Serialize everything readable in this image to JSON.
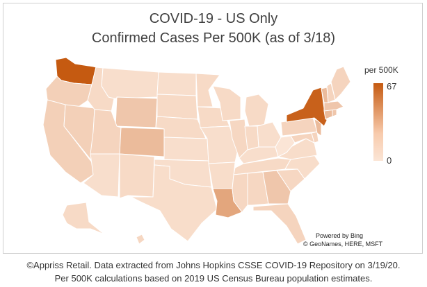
{
  "title_line1": "COVID-19 - US Only",
  "title_line2": "Confirmed Cases Per 500K (as of 3/18)",
  "legend": {
    "title": "per 500K",
    "max": "67",
    "min": "0"
  },
  "credits": {
    "powered_by": "Powered by Bing",
    "sources": "© GeoNames, HERE, MSFT"
  },
  "footnote": {
    "line1": "©Appriss Retail.  Data extracted from Johns Hopkins CSSE COVID-19 Repository on 3/19/20.",
    "line2": "Per 500K calculations based on 2019 US Census Bureau population estimates."
  },
  "colors": {
    "high": "#c55a11",
    "low": "#fbe5d6"
  },
  "regions": [
    {
      "abbr": "WA",
      "level": 1.0
    },
    {
      "abbr": "NY",
      "level": 0.95
    },
    {
      "abbr": "LA",
      "level": 0.45
    },
    {
      "abbr": "CO",
      "level": 0.3
    },
    {
      "abbr": "VT",
      "level": 0.3
    },
    {
      "abbr": "NJ",
      "level": 0.3
    },
    {
      "abbr": "WY",
      "level": 0.22
    },
    {
      "abbr": "GA",
      "level": 0.22
    },
    {
      "abbr": "MA",
      "level": 0.22
    },
    {
      "abbr": "RI",
      "level": 0.22
    },
    {
      "abbr": "OR",
      "level": 0.15
    },
    {
      "abbr": "CA",
      "level": 0.15
    },
    {
      "abbr": "NV",
      "level": 0.15
    },
    {
      "abbr": "UT",
      "level": 0.12
    },
    {
      "abbr": "ME",
      "level": 0.12
    },
    {
      "abbr": "FL",
      "level": 0.12
    },
    {
      "abbr": "ID",
      "level": 0.08
    },
    {
      "abbr": "MT",
      "level": 0.05
    },
    {
      "abbr": "ND",
      "level": 0.05
    },
    {
      "abbr": "SD",
      "level": 0.08
    },
    {
      "abbr": "NE",
      "level": 0.08
    },
    {
      "abbr": "KS",
      "level": 0.05
    },
    {
      "abbr": "OK",
      "level": 0.05
    },
    {
      "abbr": "TX",
      "level": 0.06
    },
    {
      "abbr": "AZ",
      "level": 0.05
    },
    {
      "abbr": "NM",
      "level": 0.08
    },
    {
      "abbr": "MN",
      "level": 0.08
    },
    {
      "abbr": "IA",
      "level": 0.08
    },
    {
      "abbr": "MO",
      "level": 0.05
    },
    {
      "abbr": "AR",
      "level": 0.06
    },
    {
      "abbr": "WI",
      "level": 0.08
    },
    {
      "abbr": "IL",
      "level": 0.1
    },
    {
      "abbr": "MI",
      "level": 0.08
    },
    {
      "abbr": "IN",
      "level": 0.08
    },
    {
      "abbr": "OH",
      "level": 0.05
    },
    {
      "abbr": "KY",
      "level": 0.05
    },
    {
      "abbr": "TN",
      "level": 0.08
    },
    {
      "abbr": "MS",
      "level": 0.1
    },
    {
      "abbr": "AL",
      "level": 0.1
    },
    {
      "abbr": "SC",
      "level": 0.1
    },
    {
      "abbr": "NC",
      "level": 0.06
    },
    {
      "abbr": "VA",
      "level": 0.06
    },
    {
      "abbr": "WV",
      "level": 0.0
    },
    {
      "abbr": "PA",
      "level": 0.12
    },
    {
      "abbr": "MD",
      "level": 0.12
    },
    {
      "abbr": "DE",
      "level": 0.12
    },
    {
      "abbr": "CT",
      "level": 0.3
    },
    {
      "abbr": "NH",
      "level": 0.12
    },
    {
      "abbr": "AK",
      "level": 0.08
    },
    {
      "abbr": "HI",
      "level": 0.1
    }
  ]
}
